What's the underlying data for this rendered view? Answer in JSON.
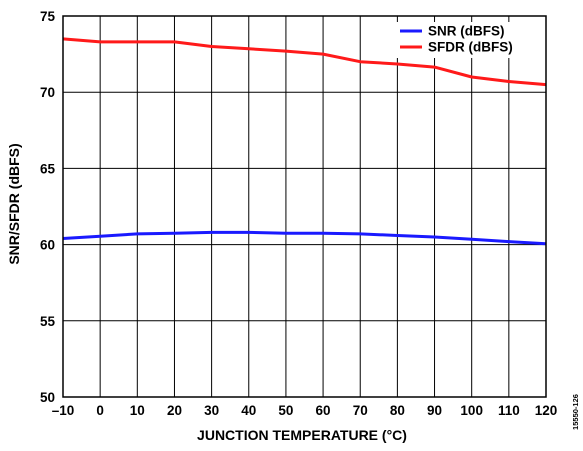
{
  "chart_data": {
    "type": "line",
    "xlabel": "JUNCTION TEMPERATURE (°C)",
    "ylabel": "SNR/SFDR (dBFS)",
    "xlim": [
      -10,
      120
    ],
    "ylim": [
      50,
      75
    ],
    "x_ticks": [
      -10,
      0,
      10,
      20,
      30,
      40,
      50,
      60,
      70,
      80,
      90,
      100,
      110,
      120
    ],
    "x_tick_labels": [
      "–10",
      "0",
      "10",
      "20",
      "30",
      "40",
      "50",
      "60",
      "70",
      "80",
      "90",
      "100",
      "110",
      "120"
    ],
    "y_ticks": [
      50,
      55,
      60,
      65,
      70,
      75
    ],
    "y_tick_labels": [
      "50",
      "55",
      "60",
      "65",
      "70",
      "75"
    ],
    "grid": true,
    "legend_position": "top-right",
    "x": [
      -10,
      0,
      10,
      20,
      30,
      40,
      50,
      60,
      70,
      80,
      90,
      100,
      110,
      120
    ],
    "series": [
      {
        "name": "SNR (dBFS)",
        "color": "#1a1aff",
        "values": [
          60.4,
          60.55,
          60.7,
          60.75,
          60.8,
          60.8,
          60.75,
          60.75,
          60.7,
          60.6,
          60.5,
          60.35,
          60.2,
          60.05
        ]
      },
      {
        "name": "SFDR (dBFS)",
        "color": "#ff1a1a",
        "values": [
          73.5,
          73.3,
          73.3,
          73.3,
          73.0,
          72.85,
          72.7,
          72.5,
          72.0,
          71.85,
          71.65,
          71.0,
          70.7,
          70.5
        ]
      }
    ],
    "figure_id": "15550-126"
  }
}
